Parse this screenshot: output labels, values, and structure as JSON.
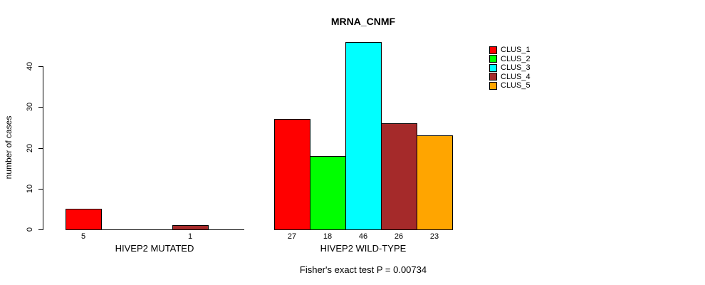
{
  "title": "MRNA_CNMF",
  "ylabel": "number of cases",
  "footer": "Fisher's exact test P = 0.00734",
  "legend": {
    "items": [
      {
        "label": "CLUS_1",
        "color": "#FF0000"
      },
      {
        "label": "CLUS_2",
        "color": "#00FF00"
      },
      {
        "label": "CLUS_3",
        "color": "#00FFFF"
      },
      {
        "label": "CLUS_4",
        "color": "#A52A2A"
      },
      {
        "label": "CLUS_5",
        "color": "#FFA500"
      }
    ]
  },
  "chart_data": {
    "type": "bar",
    "title": "MRNA_CNMF",
    "ylabel": "number of cases",
    "xlabel": "",
    "ylim": [
      0,
      46
    ],
    "yticks": [
      0,
      10,
      20,
      30,
      40
    ],
    "grid": false,
    "legend_position": "top-right",
    "annotation": "Fisher's exact test P = 0.00734",
    "series": [
      {
        "name": "CLUS_1",
        "color": "#FF0000",
        "values": [
          5,
          27
        ]
      },
      {
        "name": "CLUS_2",
        "color": "#00FF00",
        "values": [
          0,
          18
        ]
      },
      {
        "name": "CLUS_3",
        "color": "#00FFFF",
        "values": [
          0,
          46
        ]
      },
      {
        "name": "CLUS_4",
        "color": "#A52A2A",
        "values": [
          1,
          26
        ]
      },
      {
        "name": "CLUS_5",
        "color": "#FFA500",
        "values": [
          0,
          23
        ]
      }
    ],
    "groups": [
      {
        "label": "HIVEP2 MUTATED",
        "values": [
          5,
          0,
          0,
          1,
          0
        ],
        "bar_value_labels": [
          "5",
          null,
          null,
          "1",
          null
        ]
      },
      {
        "label": "HIVEP2 WILD-TYPE",
        "values": [
          27,
          18,
          46,
          26,
          23
        ],
        "bar_value_labels": [
          "27",
          "18",
          "46",
          "26",
          "23"
        ]
      }
    ]
  }
}
